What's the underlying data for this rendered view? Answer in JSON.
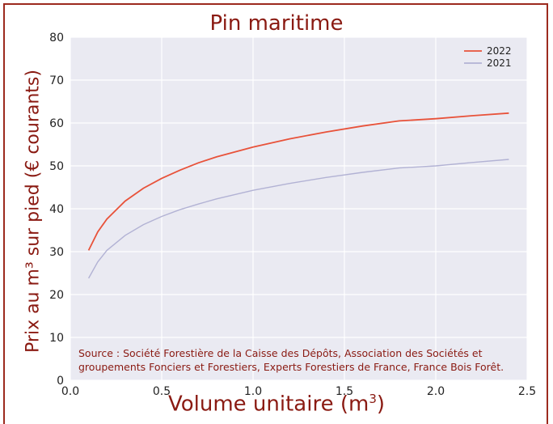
{
  "chart_data": {
    "type": "line",
    "title": "Pin maritime",
    "xlabel": "Volume unitaire (m",
    "xlabel_sup": "3",
    "xlabel_end": ")",
    "ylabel": "Prix au m³ sur pied (€ courants)",
    "xlim": [
      0,
      2.5
    ],
    "ylim": [
      0,
      80
    ],
    "x_ticks": [
      "0.0",
      "0.5",
      "1.0",
      "1.5",
      "2.0",
      "2.5"
    ],
    "y_ticks": [
      "0",
      "10",
      "20",
      "30",
      "40",
      "50",
      "60",
      "70",
      "80"
    ],
    "grid": true,
    "legend_position": "top-right",
    "series": [
      {
        "name": "2022",
        "color": "#e8523a",
        "x": [
          0.1,
          0.15,
          0.2,
          0.3,
          0.4,
          0.5,
          0.6,
          0.7,
          0.8,
          1.0,
          1.2,
          1.4,
          1.6,
          1.8,
          2.0,
          2.2,
          2.4
        ],
        "values": [
          30.3,
          34.6,
          37.6,
          41.8,
          44.8,
          47.1,
          49.0,
          50.7,
          52.1,
          54.4,
          56.3,
          57.9,
          59.3,
          60.5,
          61.0,
          61.7,
          62.3
        ]
      },
      {
        "name": "2021",
        "color": "#b2b2d4",
        "x": [
          0.1,
          0.15,
          0.2,
          0.3,
          0.4,
          0.5,
          0.6,
          0.7,
          0.8,
          1.0,
          1.2,
          1.4,
          1.6,
          1.8,
          2.0,
          2.2,
          2.4
        ],
        "values": [
          23.8,
          27.6,
          30.3,
          33.8,
          36.3,
          38.2,
          39.8,
          41.1,
          42.3,
          44.3,
          45.9,
          47.3,
          48.5,
          49.5,
          50.0,
          50.8,
          51.5
        ]
      }
    ],
    "annotation": "Source : Société Forestière de la Caisse des Dépôts, Association des Sociétés et groupements Fonciers et Forestiers, Experts Forestiers de France, France Bois Forêt."
  }
}
